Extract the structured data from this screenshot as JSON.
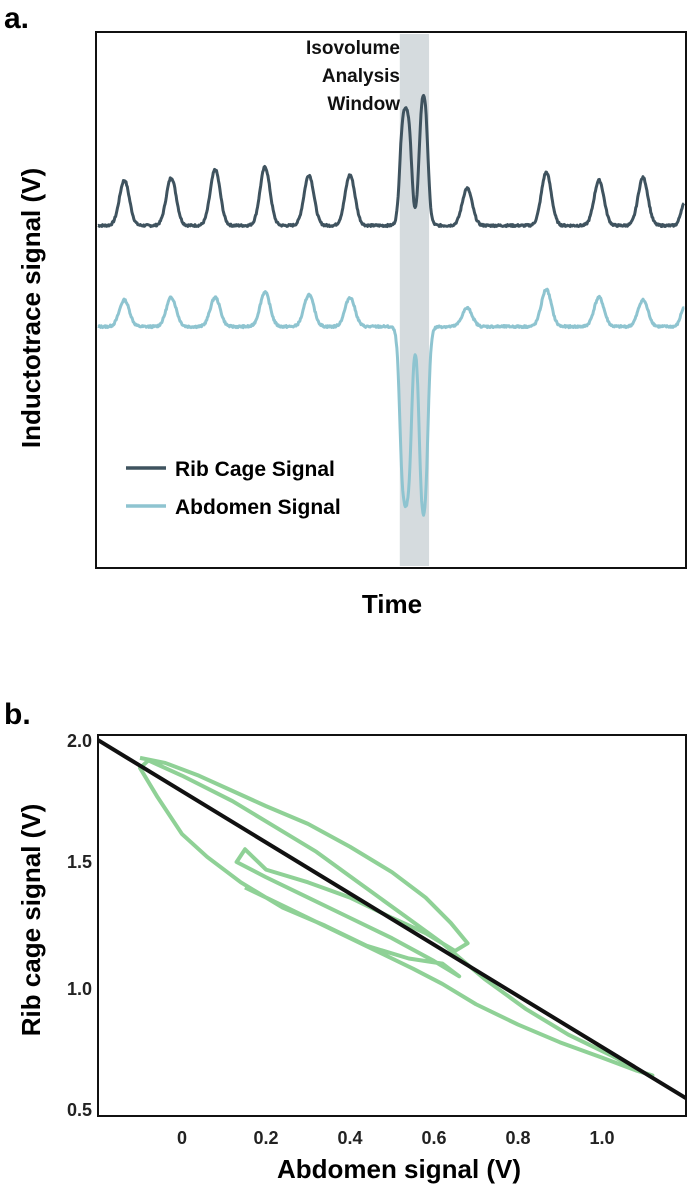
{
  "colors": {
    "rib_cage": "#3f535f",
    "abdomen": "#8ec4d0",
    "loop": "#8fd196",
    "fit_line": "#111111",
    "window": "#d5dbde"
  },
  "chart_data": [
    {
      "panel_label": "a.",
      "type": "line",
      "title": "",
      "xlabel": "Time",
      "ylabel": "Inductotrace signal (V)",
      "grid": false,
      "legend_placement": "bottom-left",
      "annotation": {
        "lines": [
          "Isovolume",
          "Analysis",
          "Window"
        ],
        "x_range": [
          0.515,
          0.565
        ]
      },
      "xlim": [
        0,
        1
      ],
      "ylim": [
        0,
        1
      ],
      "series": [
        {
          "name": "Rib Cage Signal",
          "baseline": 0.64,
          "peaks": [
            {
              "x": 0.045,
              "h": 0.085,
              "w": 0.012
            },
            {
              "x": 0.125,
              "h": 0.09,
              "w": 0.012
            },
            {
              "x": 0.2,
              "h": 0.105,
              "w": 0.012
            },
            {
              "x": 0.285,
              "h": 0.11,
              "w": 0.012
            },
            {
              "x": 0.36,
              "h": 0.095,
              "w": 0.012
            },
            {
              "x": 0.43,
              "h": 0.095,
              "w": 0.012
            },
            {
              "x": 0.63,
              "h": 0.07,
              "w": 0.012
            },
            {
              "x": 0.765,
              "h": 0.1,
              "w": 0.012
            },
            {
              "x": 0.855,
              "h": 0.085,
              "w": 0.012
            },
            {
              "x": 0.93,
              "h": 0.09,
              "w": 0.012
            },
            {
              "x": 1.0,
              "h": 0.04,
              "w": 0.008
            }
          ],
          "window_pulses": [
            {
              "x0": 0.515,
              "x1": 0.535,
              "h": 0.23
            },
            {
              "x0": 0.548,
              "x1": 0.563,
              "h": 0.27
            }
          ]
        },
        {
          "name": "Abdomen Signal",
          "baseline": 0.45,
          "peaks": [
            {
              "x": 0.045,
              "h": 0.05,
              "w": 0.012
            },
            {
              "x": 0.125,
              "h": 0.055,
              "w": 0.012
            },
            {
              "x": 0.2,
              "h": 0.055,
              "w": 0.012
            },
            {
              "x": 0.285,
              "h": 0.065,
              "w": 0.012
            },
            {
              "x": 0.36,
              "h": 0.06,
              "w": 0.012
            },
            {
              "x": 0.43,
              "h": 0.055,
              "w": 0.012
            },
            {
              "x": 0.63,
              "h": 0.035,
              "w": 0.012
            },
            {
              "x": 0.765,
              "h": 0.07,
              "w": 0.012
            },
            {
              "x": 0.855,
              "h": 0.055,
              "w": 0.012
            },
            {
              "x": 0.93,
              "h": 0.05,
              "w": 0.012
            },
            {
              "x": 1.0,
              "h": 0.035,
              "w": 0.008
            }
          ],
          "window_pulses": [
            {
              "x0": 0.515,
              "x1": 0.535,
              "h": -0.35
            },
            {
              "x0": 0.548,
              "x1": 0.563,
              "h": -0.39
            }
          ]
        }
      ]
    },
    {
      "panel_label": "b.",
      "type": "scatter",
      "title": "",
      "xlabel": "Abdomen signal (V)",
      "ylabel": "Rib cage signal (V)",
      "grid": false,
      "xlim": [
        -0.2,
        1.2
      ],
      "ylim": [
        0.5,
        2.0
      ],
      "x_ticks": [
        0,
        0.2,
        0.4,
        0.6,
        0.8,
        1.0
      ],
      "x_tick_labels": [
        "0",
        "0.2",
        "0.4",
        "0.6",
        "0.8",
        "1.0"
      ],
      "y_ticks": [
        0.5,
        1.0,
        1.5,
        2.0
      ],
      "y_tick_labels": [
        "0.5",
        "1.0",
        "1.5",
        "2.0"
      ],
      "fit_line": {
        "x": [
          -0.2,
          1.2
        ],
        "y": [
          1.98,
          0.57
        ]
      },
      "loop": [
        [
          -0.1,
          1.91
        ],
        [
          -0.04,
          1.89
        ],
        [
          0.04,
          1.84
        ],
        [
          0.12,
          1.78
        ],
        [
          0.2,
          1.72
        ],
        [
          0.3,
          1.65
        ],
        [
          0.4,
          1.56
        ],
        [
          0.5,
          1.46
        ],
        [
          0.58,
          1.36
        ],
        [
          0.64,
          1.26
        ],
        [
          0.68,
          1.18
        ],
        [
          0.65,
          1.15
        ],
        [
          0.58,
          1.22
        ],
        [
          0.5,
          1.28
        ],
        [
          0.4,
          1.36
        ],
        [
          0.3,
          1.42
        ],
        [
          0.2,
          1.47
        ],
        [
          0.15,
          1.55
        ],
        [
          0.13,
          1.5
        ],
        [
          0.2,
          1.44
        ],
        [
          0.3,
          1.36
        ],
        [
          0.4,
          1.28
        ],
        [
          0.5,
          1.2
        ],
        [
          0.6,
          1.11
        ],
        [
          0.66,
          1.05
        ],
        [
          0.62,
          1.1
        ],
        [
          0.54,
          1.12
        ],
        [
          0.44,
          1.17
        ],
        [
          0.34,
          1.25
        ],
        [
          0.24,
          1.32
        ],
        [
          0.14,
          1.42
        ],
        [
          0.06,
          1.52
        ],
        [
          0.0,
          1.61
        ],
        [
          -0.06,
          1.76
        ],
        [
          -0.1,
          1.87
        ],
        [
          -0.08,
          1.9
        ],
        [
          0.0,
          1.84
        ],
        [
          0.12,
          1.74
        ],
        [
          0.22,
          1.64
        ],
        [
          0.32,
          1.54
        ],
        [
          0.42,
          1.42
        ],
        [
          0.52,
          1.3
        ],
        [
          0.62,
          1.18
        ],
        [
          0.72,
          1.04
        ],
        [
          0.82,
          0.92
        ],
        [
          0.92,
          0.82
        ],
        [
          1.02,
          0.74
        ],
        [
          1.1,
          0.67
        ],
        [
          1.12,
          0.66
        ],
        [
          1.08,
          0.68
        ],
        [
          1.0,
          0.73
        ],
        [
          0.9,
          0.79
        ],
        [
          0.8,
          0.86
        ],
        [
          0.7,
          0.94
        ],
        [
          0.62,
          1.02
        ],
        [
          0.55,
          1.08
        ],
        [
          0.45,
          1.16
        ],
        [
          0.35,
          1.24
        ],
        [
          0.25,
          1.32
        ],
        [
          0.15,
          1.4
        ]
      ]
    }
  ]
}
